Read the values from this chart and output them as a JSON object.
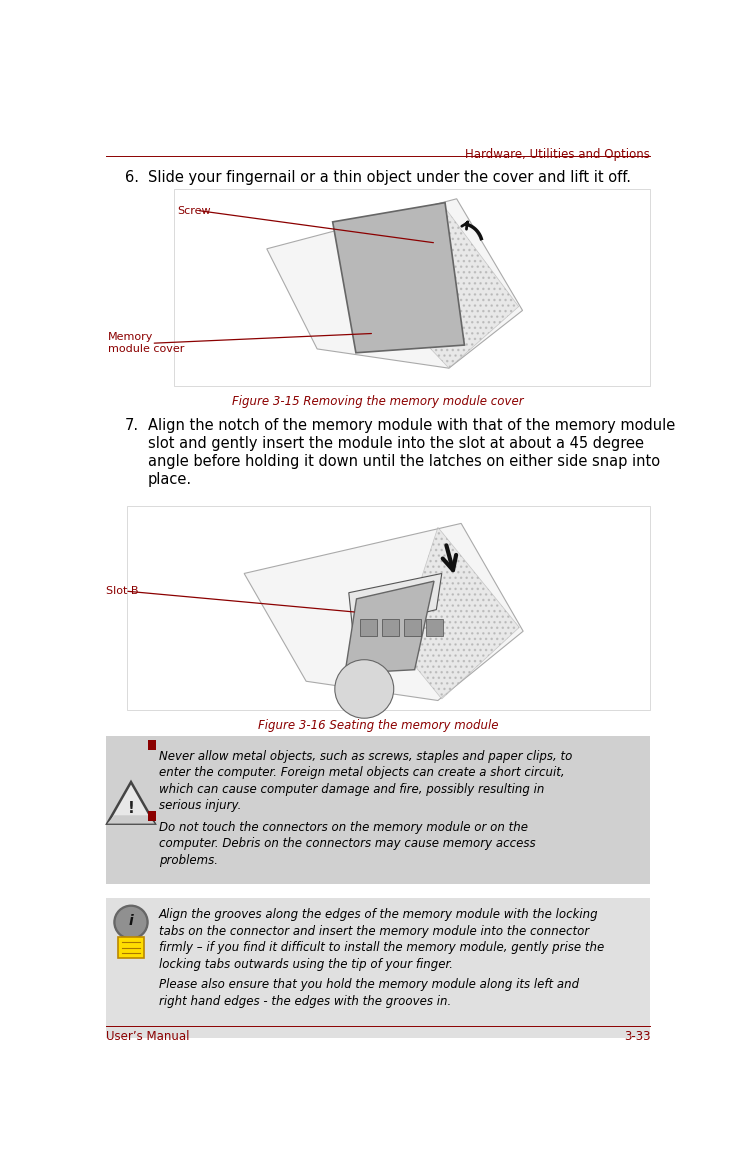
{
  "page_width": 7.38,
  "page_height": 11.72,
  "bg_color": "#ffffff",
  "header_text": "Hardware, Utilities and Options",
  "header_color": "#8B0000",
  "header_line_color": "#8B0000",
  "footer_text_left": "User’s Manual",
  "footer_text_right": "3-33",
  "footer_color": "#8B0000",
  "footer_line_color": "#8B0000",
  "step6_label": "6.",
  "step6_text": "Slide your fingernail or a thin object under the cover and lift it off.",
  "fig1_caption": "Figure 3-15 Removing the memory module cover",
  "fig1_caption_color": "#8B0000",
  "screw_label": "Screw",
  "screw_label_color": "#8B0000",
  "memory_cover_label": "Memory\nmodule cover",
  "memory_cover_label_color": "#8B0000",
  "step7_label": "7.",
  "step7_line1": "Align the notch of the memory module with that of the memory module",
  "step7_line2": "slot and gently insert the module into the slot at about a 45 degree",
  "step7_line3": "angle before holding it down until the latches on either side snap into",
  "step7_line4": "place.",
  "fig2_caption": "Figure 3-16 Seating the memory module",
  "fig2_caption_color": "#8B0000",
  "slot_b_label": "Slot B",
  "slot_b_label_color": "#8B0000",
  "warning_bg": "#d0d0d0",
  "warning_bullet_color": "#8B0000",
  "warning_text1_l1": "Never allow metal objects, such as screws, staples and paper clips, to",
  "warning_text1_l2": "enter the computer. Foreign metal objects can create a short circuit,",
  "warning_text1_l3": "which can cause computer damage and fire, possibly resulting in",
  "warning_text1_l4": "serious injury.",
  "warning_text2_l1": "Do not touch the connectors on the memory module or on the",
  "warning_text2_l2": "computer. Debris on the connectors may cause memory access",
  "warning_text2_l3": "problems.",
  "info_bg": "#e0e0e0",
  "info_text1_l1": "Align the grooves along the edges of the memory module with the locking",
  "info_text1_l2": "tabs on the connector and insert the memory module into the connector",
  "info_text1_l3": "firmly – if you find it difficult to install the memory module, gently prise the",
  "info_text1_l4": "locking tabs outwards using the tip of your finger.",
  "info_text2_l1": "Please also ensure that you hold the memory module along its left and",
  "info_text2_l2": "right hand edges - the edges with the grooves in.",
  "img_outline_color": "#cccccc",
  "img_bg": "#ffffff",
  "sketch_color": "#888888",
  "cover_fill": "#b8b8b8",
  "body_fill": "#e8e8e8"
}
